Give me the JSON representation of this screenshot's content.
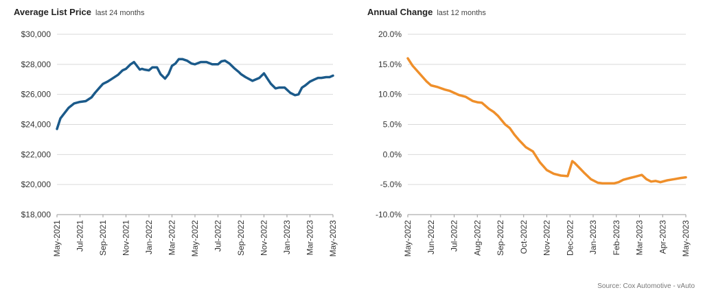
{
  "source": "Source: Cox Automotive - vAuto",
  "chart_data": [
    {
      "type": "line",
      "title": "Average List Price",
      "subtitle": "last 24 months",
      "color": "#1b5a8a",
      "ylim": [
        18000,
        30000
      ],
      "y_ticks": [
        "$18,000",
        "$20,000",
        "$22,000",
        "$24,000",
        "$26,000",
        "$28,000",
        "$30,000"
      ],
      "y_tick_values": [
        18000,
        20000,
        22000,
        24000,
        26000,
        28000,
        30000
      ],
      "x_range": [
        0,
        24
      ],
      "x_ticks": [
        "May-2021",
        "Jul-2021",
        "Sep-2021",
        "Nov-2021",
        "Jan-2022",
        "Mar-2022",
        "May-2022",
        "Jul-2022",
        "Sep-2022",
        "Nov-2022",
        "Jan-2023",
        "Mar-2023",
        "May-2023"
      ],
      "x_tick_positions": [
        0,
        2,
        4,
        6,
        8,
        10,
        12,
        14,
        16,
        18,
        20,
        22,
        24
      ],
      "grid": true,
      "x": [
        0,
        0.3,
        0.6,
        1,
        1.5,
        2,
        2.5,
        3,
        3.3,
        3.7,
        4,
        4.4,
        4.7,
        5.3,
        5.7,
        6,
        6.4,
        6.7,
        7.2,
        7.4,
        7.6,
        8,
        8.3,
        8.7,
        9,
        9.4,
        9.7,
        10,
        10.3,
        10.6,
        10.9,
        11.3,
        11.7,
        12,
        12.5,
        13,
        13.5,
        14,
        14.3,
        14.6,
        15,
        15.4,
        15.8,
        16,
        16.4,
        17,
        17.6,
        18,
        18.3,
        18.6,
        19,
        19.3,
        19.8,
        20.3,
        20.7,
        21,
        21.3,
        21.6,
        22,
        22.4,
        22.7,
        23,
        23.4,
        23.7,
        24
      ],
      "y": [
        23700,
        24400,
        24700,
        25100,
        25400,
        25500,
        25550,
        25800,
        26100,
        26450,
        26700,
        26850,
        27000,
        27300,
        27600,
        27700,
        28000,
        28150,
        27650,
        27700,
        27650,
        27600,
        27800,
        27800,
        27350,
        27050,
        27350,
        27900,
        28050,
        28350,
        28350,
        28250,
        28050,
        28000,
        28150,
        28150,
        28000,
        28000,
        28200,
        28250,
        28050,
        27750,
        27500,
        27350,
        27150,
        26900,
        27100,
        27400,
        27050,
        26700,
        26400,
        26450,
        26450,
        26100,
        25950,
        26000,
        26450,
        26600,
        26850,
        27000,
        27100,
        27100,
        27150,
        27150,
        27250
      ]
    },
    {
      "type": "line",
      "title": "Annual Change",
      "subtitle": "last 12 months",
      "color": "#ef8f2a",
      "ylim": [
        -10,
        20
      ],
      "y_ticks": [
        "-10.0%",
        "-5.0%",
        "0.0%",
        "5.0%",
        "10.0%",
        "15.0%",
        "20.0%"
      ],
      "y_tick_values": [
        -10,
        -5,
        0,
        5,
        10,
        15,
        20
      ],
      "x_range": [
        0,
        12
      ],
      "x_ticks": [
        "May-2022",
        "Jun-2022",
        "Jul-2022",
        "Aug-2022",
        "Sep-2022",
        "Oct-2022",
        "Nov-2022",
        "Dec-2022",
        "Jan-2023",
        "Feb-2023",
        "Mar-2023",
        "Apr-2023",
        "May-2023"
      ],
      "x_tick_positions": [
        0,
        1,
        2,
        3,
        4,
        5,
        6,
        7,
        8,
        9,
        10,
        11,
        12
      ],
      "grid": true,
      "x": [
        0,
        0.2,
        0.5,
        0.8,
        1,
        1.3,
        1.6,
        1.8,
        2.2,
        2.5,
        2.8,
        3,
        3.2,
        3.5,
        3.7,
        3.9,
        4.2,
        4.4,
        4.6,
        4.8,
        5.1,
        5.4,
        5.7,
        6,
        6.3,
        6.6,
        6.9,
        7.1,
        7.2,
        7.4,
        7.6,
        7.9,
        8.2,
        8.4,
        8.6,
        8.9,
        9.1,
        9.3,
        9.6,
        9.8,
        10.1,
        10.3,
        10.5,
        10.7,
        10.9,
        11.2,
        11.5,
        11.8,
        12
      ],
      "y": [
        16,
        14.8,
        13.5,
        12.2,
        11.5,
        11.2,
        10.8,
        10.6,
        9.9,
        9.6,
        8.9,
        8.7,
        8.6,
        7.6,
        7.1,
        6.4,
        5.0,
        4.4,
        3.3,
        2.4,
        1.2,
        0.5,
        -1.3,
        -2.6,
        -3.2,
        -3.5,
        -3.6,
        -1.1,
        -1.4,
        -2.2,
        -3.0,
        -4.1,
        -4.7,
        -4.8,
        -4.8,
        -4.8,
        -4.6,
        -4.2,
        -3.9,
        -3.7,
        -3.4,
        -4.1,
        -4.5,
        -4.4,
        -4.6,
        -4.3,
        -4.1,
        -3.9,
        -3.8
      ]
    }
  ]
}
